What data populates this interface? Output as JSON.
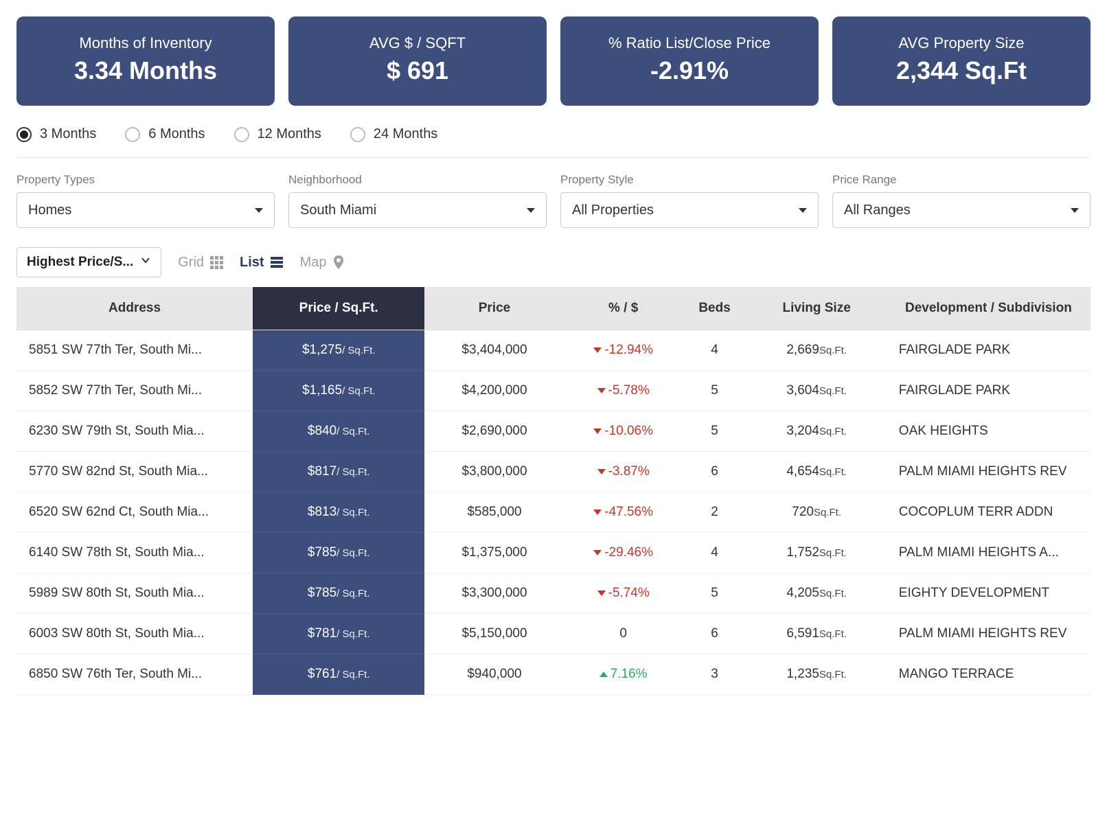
{
  "colors": {
    "card_bg": "#3d4e7d",
    "header_dark": "#2d2f42",
    "header_light": "#e6e6e9",
    "down": "#c0392b",
    "up": "#27ae60",
    "active_view": "#2b3a67",
    "inactive_view": "#9aa0a6"
  },
  "cards": [
    {
      "label": "Months of Inventory",
      "value": "3.34 Months"
    },
    {
      "label": "AVG $ / SQFT",
      "value": "$ 691"
    },
    {
      "label": "% Ratio List/Close Price",
      "value": "-2.91%"
    },
    {
      "label": "AVG Property Size",
      "value": "2,344 Sq.Ft"
    }
  ],
  "periods": {
    "options": [
      "3 Months",
      "6 Months",
      "12 Months",
      "24 Months"
    ],
    "selected": "3 Months"
  },
  "filters": [
    {
      "label": "Property Types",
      "value": "Homes"
    },
    {
      "label": "Neighborhood",
      "value": "South Miami"
    },
    {
      "label": "Property Style",
      "value": "All Properties"
    },
    {
      "label": "Price Range",
      "value": "All Ranges"
    }
  ],
  "sort": {
    "value": "Highest Price/S..."
  },
  "views": {
    "grid": "Grid",
    "list": "List",
    "map": "Map",
    "active": "list"
  },
  "table": {
    "columns": [
      "Address",
      "Price / Sq.Ft.",
      "Price",
      "% / $",
      "Beds",
      "Living Size",
      "Development / Subdivision"
    ],
    "psf_unit": "/ Sq.Ft.",
    "liv_unit": "Sq.Ft.",
    "rows": [
      {
        "address": "5851 SW 77th Ter, South Mi...",
        "psf": "$1,275",
        "price": "$3,404,000",
        "pct": "-12.94%",
        "dir": "down",
        "beds": "4",
        "liv": "2,669",
        "dev": "FAIRGLADE PARK"
      },
      {
        "address": "5852 SW 77th Ter, South Mi...",
        "psf": "$1,165",
        "price": "$4,200,000",
        "pct": "-5.78%",
        "dir": "down",
        "beds": "5",
        "liv": "3,604",
        "dev": "FAIRGLADE PARK"
      },
      {
        "address": "6230 SW 79th St, South Mia...",
        "psf": "$840",
        "price": "$2,690,000",
        "pct": "-10.06%",
        "dir": "down",
        "beds": "5",
        "liv": "3,204",
        "dev": "OAK HEIGHTS"
      },
      {
        "address": "5770 SW 82nd St, South Mia...",
        "psf": "$817",
        "price": "$3,800,000",
        "pct": "-3.87%",
        "dir": "down",
        "beds": "6",
        "liv": "4,654",
        "dev": "PALM MIAMI HEIGHTS REV"
      },
      {
        "address": "6520 SW 62nd Ct, South Mia...",
        "psf": "$813",
        "price": "$585,000",
        "pct": "-47.56%",
        "dir": "down",
        "beds": "2",
        "liv": "720",
        "dev": "COCOPLUM TERR ADDN"
      },
      {
        "address": "6140 SW 78th St, South Mia...",
        "psf": "$785",
        "price": "$1,375,000",
        "pct": "-29.46%",
        "dir": "down",
        "beds": "4",
        "liv": "1,752",
        "dev": "PALM MIAMI HEIGHTS A..."
      },
      {
        "address": "5989 SW 80th St, South Mia...",
        "psf": "$785",
        "price": "$3,300,000",
        "pct": "-5.74%",
        "dir": "down",
        "beds": "5",
        "liv": "4,205",
        "dev": "EIGHTY DEVELOPMENT"
      },
      {
        "address": "6003 SW 80th St, South Mia...",
        "psf": "$781",
        "price": "$5,150,000",
        "pct": "0",
        "dir": "zero",
        "beds": "6",
        "liv": "6,591",
        "dev": "PALM MIAMI HEIGHTS REV"
      },
      {
        "address": "6850 SW 76th Ter, South Mi...",
        "psf": "$761",
        "price": "$940,000",
        "pct": "7.16%",
        "dir": "up",
        "beds": "3",
        "liv": "1,235",
        "dev": "MANGO TERRACE"
      }
    ]
  }
}
